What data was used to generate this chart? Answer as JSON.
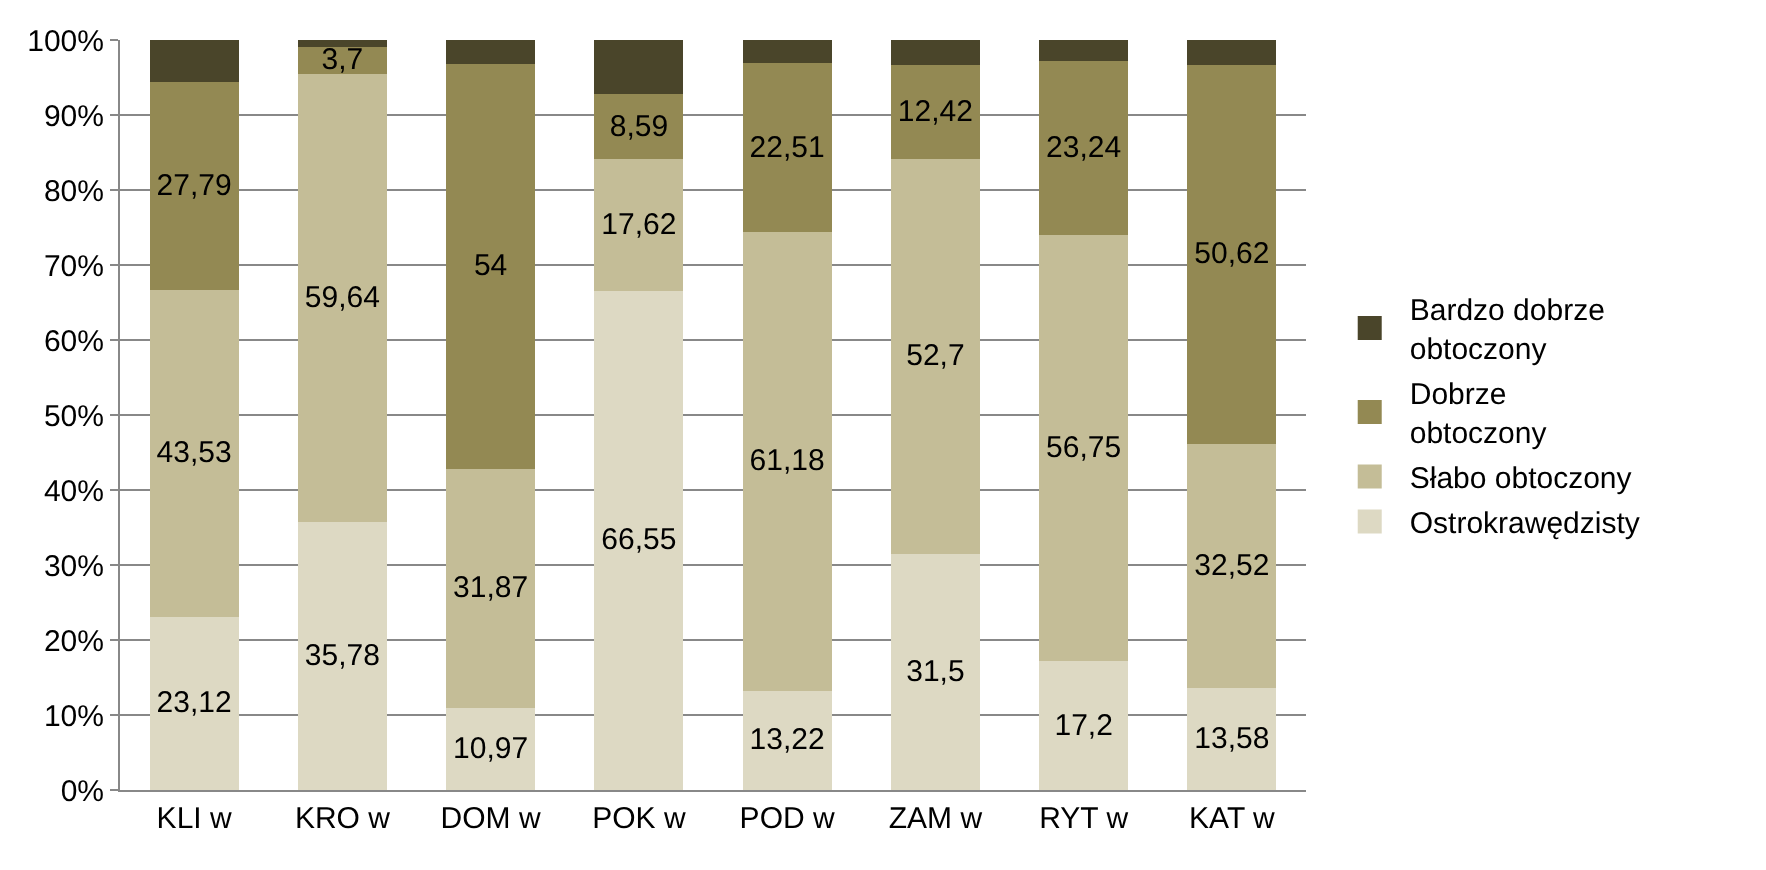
{
  "chart_data": {
    "type": "bar",
    "stacked": true,
    "categories": [
      "KLI w",
      "KRO w",
      "DOM w",
      "POK w",
      "POD w",
      "ZAM w",
      "RYT w",
      "KAT w"
    ],
    "series": [
      {
        "name": "Ostrokrawędzisty",
        "color": "#ddd9c3",
        "values": [
          23.12,
          35.78,
          10.97,
          66.55,
          13.22,
          31.5,
          17.2,
          13.58
        ],
        "value_labels": [
          "23,12",
          "35,78",
          "10,97",
          "66,55",
          "13,22",
          "31,5",
          "17,2",
          "13,58"
        ]
      },
      {
        "name": "Słabo obtoczony",
        "color": "#c4bd97",
        "values": [
          43.53,
          59.64,
          31.87,
          17.62,
          61.18,
          52.7,
          56.75,
          32.52
        ],
        "value_labels": [
          "43,53",
          "59,64",
          "31,87",
          "17,62",
          "61,18",
          "52,7",
          "56,75",
          "32,52"
        ]
      },
      {
        "name": "Dobrze obtoczony",
        "color": "#938953",
        "values": [
          27.79,
          3.7,
          54,
          8.59,
          22.51,
          12.42,
          23.24,
          50.62
        ],
        "value_labels": [
          "27,79",
          "3,7",
          "54",
          "8,59",
          "22,51",
          "12,42",
          "23,24",
          "50,62"
        ]
      },
      {
        "name": "Bardzo dobrze obtoczony",
        "color": "#4a452a",
        "values": [
          5.6,
          0.9,
          3.2,
          7.2,
          3.1,
          3.4,
          2.8,
          3.3
        ]
      }
    ],
    "ylim": [
      0,
      100
    ],
    "yticks": [
      {
        "value": 0,
        "label": "0%"
      },
      {
        "value": 10,
        "label": "10%"
      },
      {
        "value": 20,
        "label": "20%"
      },
      {
        "value": 30,
        "label": "30%"
      },
      {
        "value": 40,
        "label": "40%"
      },
      {
        "value": 50,
        "label": "50%"
      },
      {
        "value": 60,
        "label": "60%"
      },
      {
        "value": 70,
        "label": "70%"
      },
      {
        "value": 80,
        "label": "80%"
      },
      {
        "value": 90,
        "label": "90%"
      },
      {
        "value": 100,
        "label": "100%"
      }
    ],
    "grid": "y",
    "legend": "right"
  }
}
